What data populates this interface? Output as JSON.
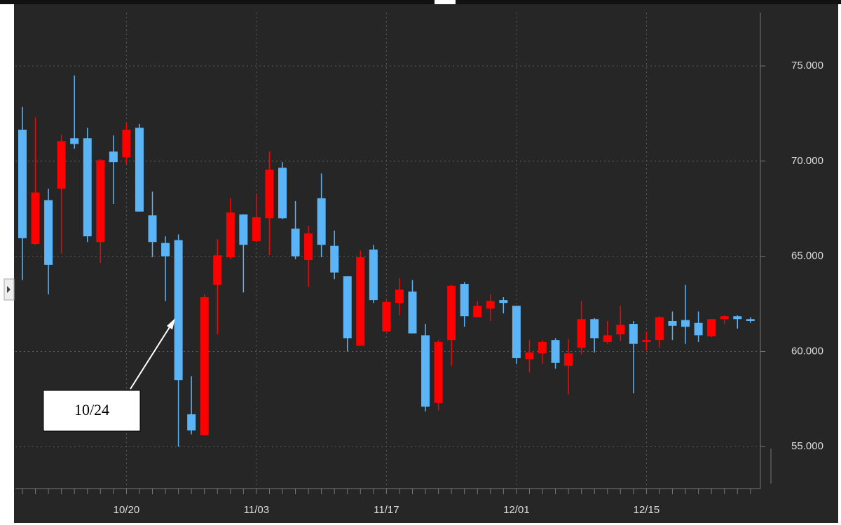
{
  "chart_data": {
    "type": "candlestick",
    "categories": [
      null,
      null,
      null,
      null,
      null,
      null,
      null,
      null,
      "10/20",
      null,
      null,
      null,
      null,
      null,
      null,
      null,
      null,
      null,
      "11/03",
      null,
      null,
      null,
      null,
      null,
      null,
      null,
      null,
      null,
      "11/17",
      null,
      null,
      null,
      null,
      null,
      null,
      null,
      null,
      null,
      "12/01",
      null,
      null,
      null,
      null,
      null,
      null,
      null,
      null,
      null,
      "12/15",
      null,
      null,
      null,
      null,
      null,
      null,
      null,
      null
    ],
    "open": [
      71.65,
      65.65,
      67.95,
      68.55,
      71.2,
      71.2,
      65.75,
      70.5,
      70.2,
      71.75,
      67.15,
      65.7,
      65.85,
      56.7,
      55.6,
      63.5,
      64.95,
      67.2,
      65.8,
      67.0,
      69.65,
      66.45,
      64.8,
      68.05,
      65.55,
      63.95,
      60.3,
      65.35,
      61.05,
      62.55,
      63.15,
      60.85,
      57.3,
      60.6,
      63.55,
      61.8,
      62.25,
      62.7,
      62.4,
      59.6,
      59.9,
      60.6,
      59.25,
      60.2,
      61.7,
      60.5,
      60.9,
      61.45,
      60.5,
      60.6,
      61.6,
      61.65,
      61.5,
      60.8,
      61.7,
      61.85,
      61.7
    ],
    "high": [
      72.85,
      72.3,
      68.55,
      71.4,
      74.5,
      71.75,
      70.1,
      71.35,
      72.0,
      71.95,
      68.4,
      66.05,
      66.15,
      58.7,
      63.0,
      65.9,
      68.05,
      67.2,
      68.3,
      70.5,
      69.95,
      67.9,
      66.6,
      69.35,
      66.35,
      63.95,
      65.3,
      65.6,
      62.7,
      63.85,
      63.75,
      61.45,
      60.6,
      63.5,
      63.65,
      62.65,
      63.0,
      62.85,
      62.4,
      60.6,
      60.6,
      60.7,
      60.65,
      62.65,
      61.75,
      61.6,
      62.4,
      61.6,
      61.05,
      61.85,
      62.1,
      63.5,
      62.1,
      61.7,
      61.9,
      61.9,
      61.8
    ],
    "low": [
      63.75,
      65.6,
      63.0,
      65.15,
      70.65,
      65.75,
      64.65,
      67.75,
      69.85,
      67.35,
      64.95,
      62.65,
      55.0,
      55.65,
      55.6,
      60.9,
      64.85,
      63.1,
      65.75,
      65.05,
      66.95,
      64.85,
      63.4,
      64.95,
      63.8,
      60.0,
      60.3,
      62.55,
      61.05,
      61.9,
      60.95,
      56.85,
      56.9,
      59.25,
      61.3,
      61.8,
      61.6,
      62.0,
      59.35,
      58.9,
      59.35,
      59.1,
      57.75,
      59.85,
      59.95,
      60.4,
      60.55,
      57.8,
      60.05,
      60.2,
      60.6,
      60.4,
      60.5,
      60.75,
      61.45,
      61.2,
      61.5
    ],
    "close": [
      65.95,
      68.35,
      64.55,
      71.05,
      70.9,
      66.05,
      70.05,
      69.95,
      71.65,
      67.35,
      65.75,
      65.0,
      58.5,
      55.85,
      62.85,
      65.05,
      67.3,
      65.6,
      67.05,
      69.55,
      67.0,
      65.0,
      66.2,
      65.6,
      64.15,
      60.7,
      64.95,
      62.7,
      62.6,
      63.25,
      60.95,
      57.1,
      60.5,
      63.45,
      61.85,
      62.4,
      62.65,
      62.55,
      59.65,
      59.95,
      60.5,
      59.4,
      59.9,
      61.7,
      60.7,
      60.85,
      61.4,
      60.4,
      60.6,
      61.8,
      61.35,
      61.3,
      60.85,
      61.7,
      61.85,
      61.7,
      61.6
    ],
    "up_color": "#ff0000",
    "down_color": "#5ab4f5",
    "ylim": [
      52.8,
      77.8
    ],
    "yticks": [
      {
        "value": 55,
        "label": "55.000"
      },
      {
        "value": 60,
        "label": "60.000"
      },
      {
        "value": 65,
        "label": "65.000"
      },
      {
        "value": 70,
        "label": "70.000"
      },
      {
        "value": 75,
        "label": "75.000"
      }
    ],
    "grid": true,
    "annotation": "10/24"
  }
}
